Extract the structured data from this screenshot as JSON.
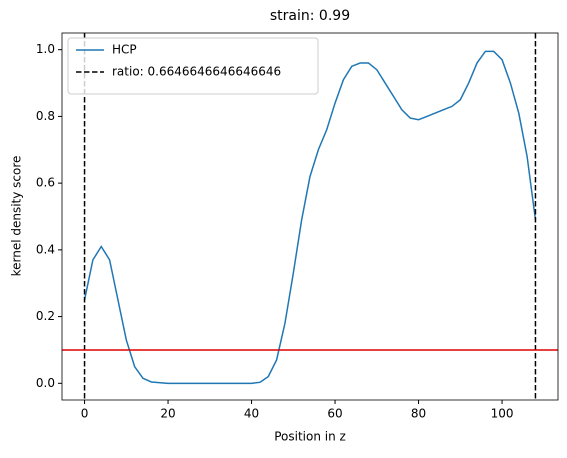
{
  "chart_data": {
    "type": "line",
    "title": "strain: 0.99",
    "xlabel": "Position in z",
    "ylabel": "kernel density score",
    "x": [
      0,
      2,
      4,
      6,
      8,
      10,
      12,
      14,
      16,
      20,
      30,
      40,
      42,
      44,
      46,
      48,
      50,
      52,
      54,
      56,
      58,
      60,
      62,
      64,
      66,
      68,
      70,
      72,
      74,
      76,
      78,
      80,
      82,
      84,
      86,
      88,
      90,
      92,
      94,
      96,
      98,
      100,
      102,
      104,
      106,
      108
    ],
    "series": [
      {
        "name": "HCP",
        "color": "#1f77b4",
        "values": [
          0.25,
          0.37,
          0.41,
          0.37,
          0.25,
          0.13,
          0.05,
          0.015,
          0.004,
          0.0,
          0.0,
          0.0,
          0.003,
          0.02,
          0.07,
          0.18,
          0.33,
          0.49,
          0.62,
          0.7,
          0.76,
          0.84,
          0.91,
          0.95,
          0.96,
          0.96,
          0.94,
          0.9,
          0.86,
          0.82,
          0.795,
          0.79,
          0.8,
          0.81,
          0.82,
          0.83,
          0.85,
          0.9,
          0.96,
          0.995,
          0.995,
          0.97,
          0.9,
          0.81,
          0.68,
          0.49
        ]
      }
    ],
    "vlines": {
      "name": "ratio: 0.6646646646646646",
      "color": "#000000",
      "x": [
        0,
        108
      ]
    },
    "hline": {
      "y": 0.1,
      "color": "#e00000"
    },
    "xlim": [
      -5.4,
      113.4
    ],
    "ylim": [
      -0.05,
      1.05
    ],
    "xticks": [
      0,
      20,
      40,
      60,
      80,
      100
    ],
    "yticks": [
      {
        "value": 0,
        "label": "0.0"
      },
      {
        "value": 0.2,
        "label": "0.2"
      },
      {
        "value": 0.4,
        "label": "0.4"
      },
      {
        "value": 0.6,
        "label": "0.6"
      },
      {
        "value": 0.8,
        "label": "0.8"
      },
      {
        "value": 1,
        "label": "1.0"
      }
    ],
    "grid": false,
    "legend": "upper-left"
  }
}
